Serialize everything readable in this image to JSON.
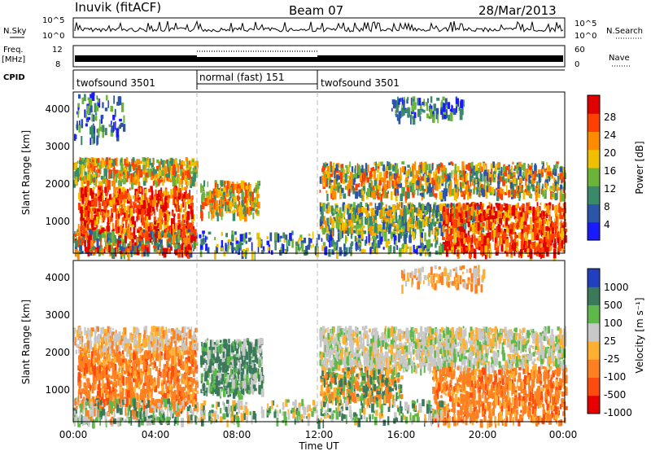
{
  "header": {
    "station": "Inuvik (fitACF)",
    "beam": "Beam 07",
    "date": "28/Mar/2013"
  },
  "panels": {
    "nsky_label": "N.Sky",
    "nsky_ticks": [
      "10^5",
      "10^0"
    ],
    "nsearch_label": "N.Search",
    "freq_label_1": "Freq.",
    "freq_label_2": "[MHz]",
    "freq_ticks": [
      "12",
      "8"
    ],
    "nave_label": "Nave",
    "nave_ticks": [
      "60",
      "0"
    ],
    "cpid_label": "CPID",
    "cpid_segments": [
      {
        "label": "twofsound 3501",
        "start_hour": 0,
        "end_hour": 6
      },
      {
        "label": "normal (fast) 151",
        "start_hour": 6,
        "end_hour": 12
      },
      {
        "label": "twofsound 3501",
        "start_hour": 12,
        "end_hour": 24
      }
    ]
  },
  "axes": {
    "ylabel": "Slant Range [km]",
    "xlabel": "Time UT",
    "yticks": [
      "1000",
      "2000",
      "3000",
      "4000"
    ],
    "xticks": [
      "00:00",
      "04:00",
      "08:00",
      "12:00",
      "16:00",
      "20:00",
      "00:00"
    ]
  },
  "colorbars": {
    "power": {
      "label": "Power [dB]",
      "ticks": [
        "4",
        "8",
        "12",
        "16",
        "20",
        "24",
        "28"
      ],
      "colors": [
        "#1a1aff",
        "#2a55a8",
        "#3a8a6a",
        "#6cb33a",
        "#f0c000",
        "#ff8c00",
        "#ff4000",
        "#e00000"
      ]
    },
    "velocity": {
      "label": "Velocity [m s⁻¹]",
      "ticks": [
        "1000",
        "500",
        "100",
        "25",
        "-25",
        "-100",
        "-500",
        "-1000"
      ],
      "colors": [
        "#2040c0",
        "#3a7a5a",
        "#5fb84a",
        "#c8c8c8",
        "#ffb030",
        "#ff8020",
        "#ff4a10",
        "#e80000"
      ]
    }
  },
  "chart_data": [
    {
      "type": "heatmap",
      "title": "Power",
      "ylabel": "Slant Range [km]",
      "x": "Time UT",
      "xlim_hours": [
        0,
        24
      ],
      "ylim_km": [
        180,
        4500
      ],
      "colorbar_ticks": [
        4,
        8,
        12,
        16,
        20,
        24,
        28
      ],
      "colorbar_label": "Power [dB]"
    },
    {
      "type": "heatmap",
      "title": "Velocity",
      "ylabel": "Slant Range [km]",
      "xlabel": "Time UT",
      "xlim_hours": [
        0,
        24
      ],
      "ylim_km": [
        180,
        4500
      ],
      "colorbar_ticks": [
        1000,
        500,
        100,
        25,
        -25,
        -100,
        -500,
        -1000
      ],
      "colorbar_label": "Velocity [m s^-1]"
    }
  ]
}
